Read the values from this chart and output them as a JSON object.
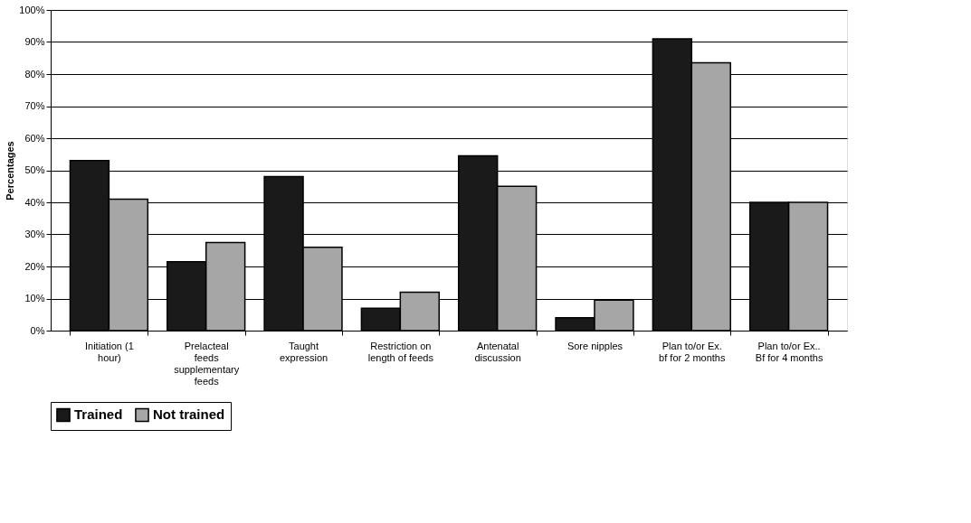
{
  "chart_data": {
    "type": "bar",
    "ylabel": "Percentages",
    "categories": [
      "Initiation (1 hour)",
      "Prelacteal feeds supplementary feeds",
      "Taught expression",
      "Restriction on length of feeds",
      "Antenatal discussion",
      "Sore nipples",
      "Plan to/or Ex. bf for 2 months",
      "Plan to/or Ex.. Bf for 4 months"
    ],
    "series": [
      {
        "name": "Trained",
        "color": "#1a1a1a",
        "values": [
          53,
          21.5,
          48,
          7,
          54.5,
          4,
          91,
          40
        ]
      },
      {
        "name": "Not trained",
        "color": "#a6a6a6",
        "values": [
          41,
          27.5,
          26,
          12,
          45,
          9.5,
          83.5,
          40
        ]
      }
    ],
    "ylim": [
      0,
      100
    ],
    "yticks": [
      {
        "value": 0,
        "label": "0%"
      },
      {
        "value": 10,
        "label": "10%"
      },
      {
        "value": 20,
        "label": "20%"
      },
      {
        "value": 30,
        "label": "30%"
      },
      {
        "value": 40,
        "label": "40%"
      },
      {
        "value": 50,
        "label": "50%"
      },
      {
        "value": 60,
        "label": "60%"
      },
      {
        "value": 70,
        "label": "70%"
      },
      {
        "value": 80,
        "label": "80%"
      },
      {
        "value": 90,
        "label": "90%"
      },
      {
        "value": 100,
        "label": "100%"
      }
    ],
    "grid": "y",
    "legend": "bottom"
  }
}
